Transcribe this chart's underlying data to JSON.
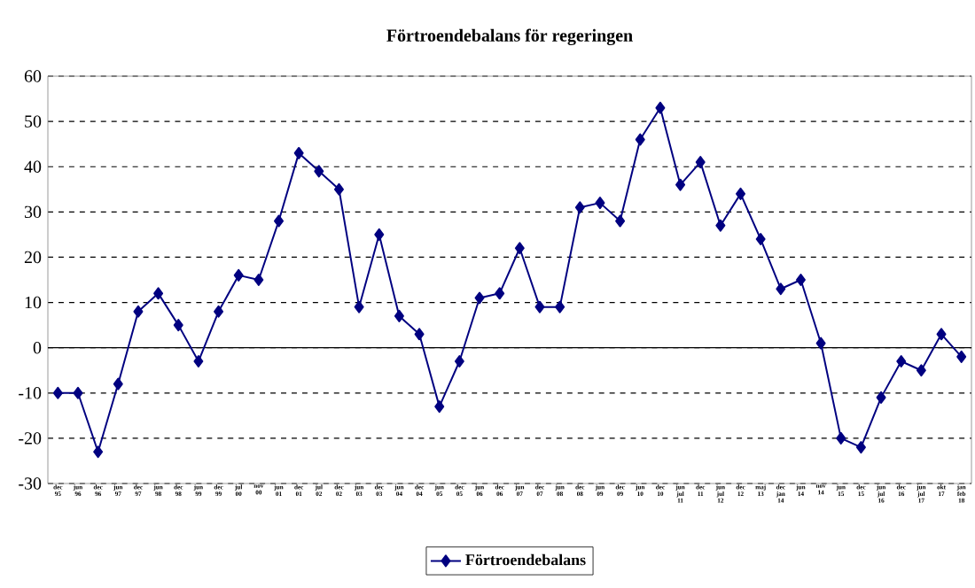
{
  "chart_data": {
    "type": "line",
    "title": "Förtroendebalans för regeringen",
    "categories": [
      "dec 95",
      "jun 96",
      "dec 96",
      "jun 97",
      "dec 97",
      "jun 98",
      "dec 98",
      "jun 99",
      "dec 99",
      "jul 00",
      "nov 00",
      "jun 01",
      "dec 01",
      "jul 02",
      "dec 02",
      "jun 03",
      "dec 03",
      "jun 04",
      "dec 04",
      "jun 05",
      "dec 05",
      "jun 06",
      "dec 06",
      "jun 07",
      "dec 07",
      "jun 08",
      "dec 08",
      "jun 09",
      "dec 09",
      "jun 10",
      "dec 10",
      "jun jul 11",
      "dec 11",
      "jun jul 12",
      "dec 12",
      "maj 13",
      "dec jan 14",
      "jun 14",
      "nov 14",
      "jun 15",
      "dec 15",
      "jun jul 16",
      "dec 16",
      "jun jul 17",
      "okt 17",
      "jan feb 18"
    ],
    "series": [
      {
        "name": "Förtroendebalans",
        "color": "#000080",
        "values": [
          -10,
          -10,
          -23,
          -8,
          8,
          12,
          5,
          -3,
          8,
          16,
          15,
          28,
          43,
          39,
          35,
          9,
          25,
          7,
          3,
          -13,
          -3,
          11,
          12,
          22,
          9,
          9,
          31,
          32,
          28,
          46,
          53,
          36,
          41,
          27,
          34,
          24,
          13,
          15,
          1,
          -20,
          -22,
          -11,
          -3,
          -5,
          3,
          -2
        ]
      }
    ],
    "ylim": [
      -30,
      60
    ],
    "yticks": [
      -30,
      -20,
      -10,
      0,
      10,
      20,
      30,
      40,
      50,
      60
    ],
    "grid": "y",
    "legend": "bottom",
    "marker": "diamond",
    "line_style": "solid"
  }
}
